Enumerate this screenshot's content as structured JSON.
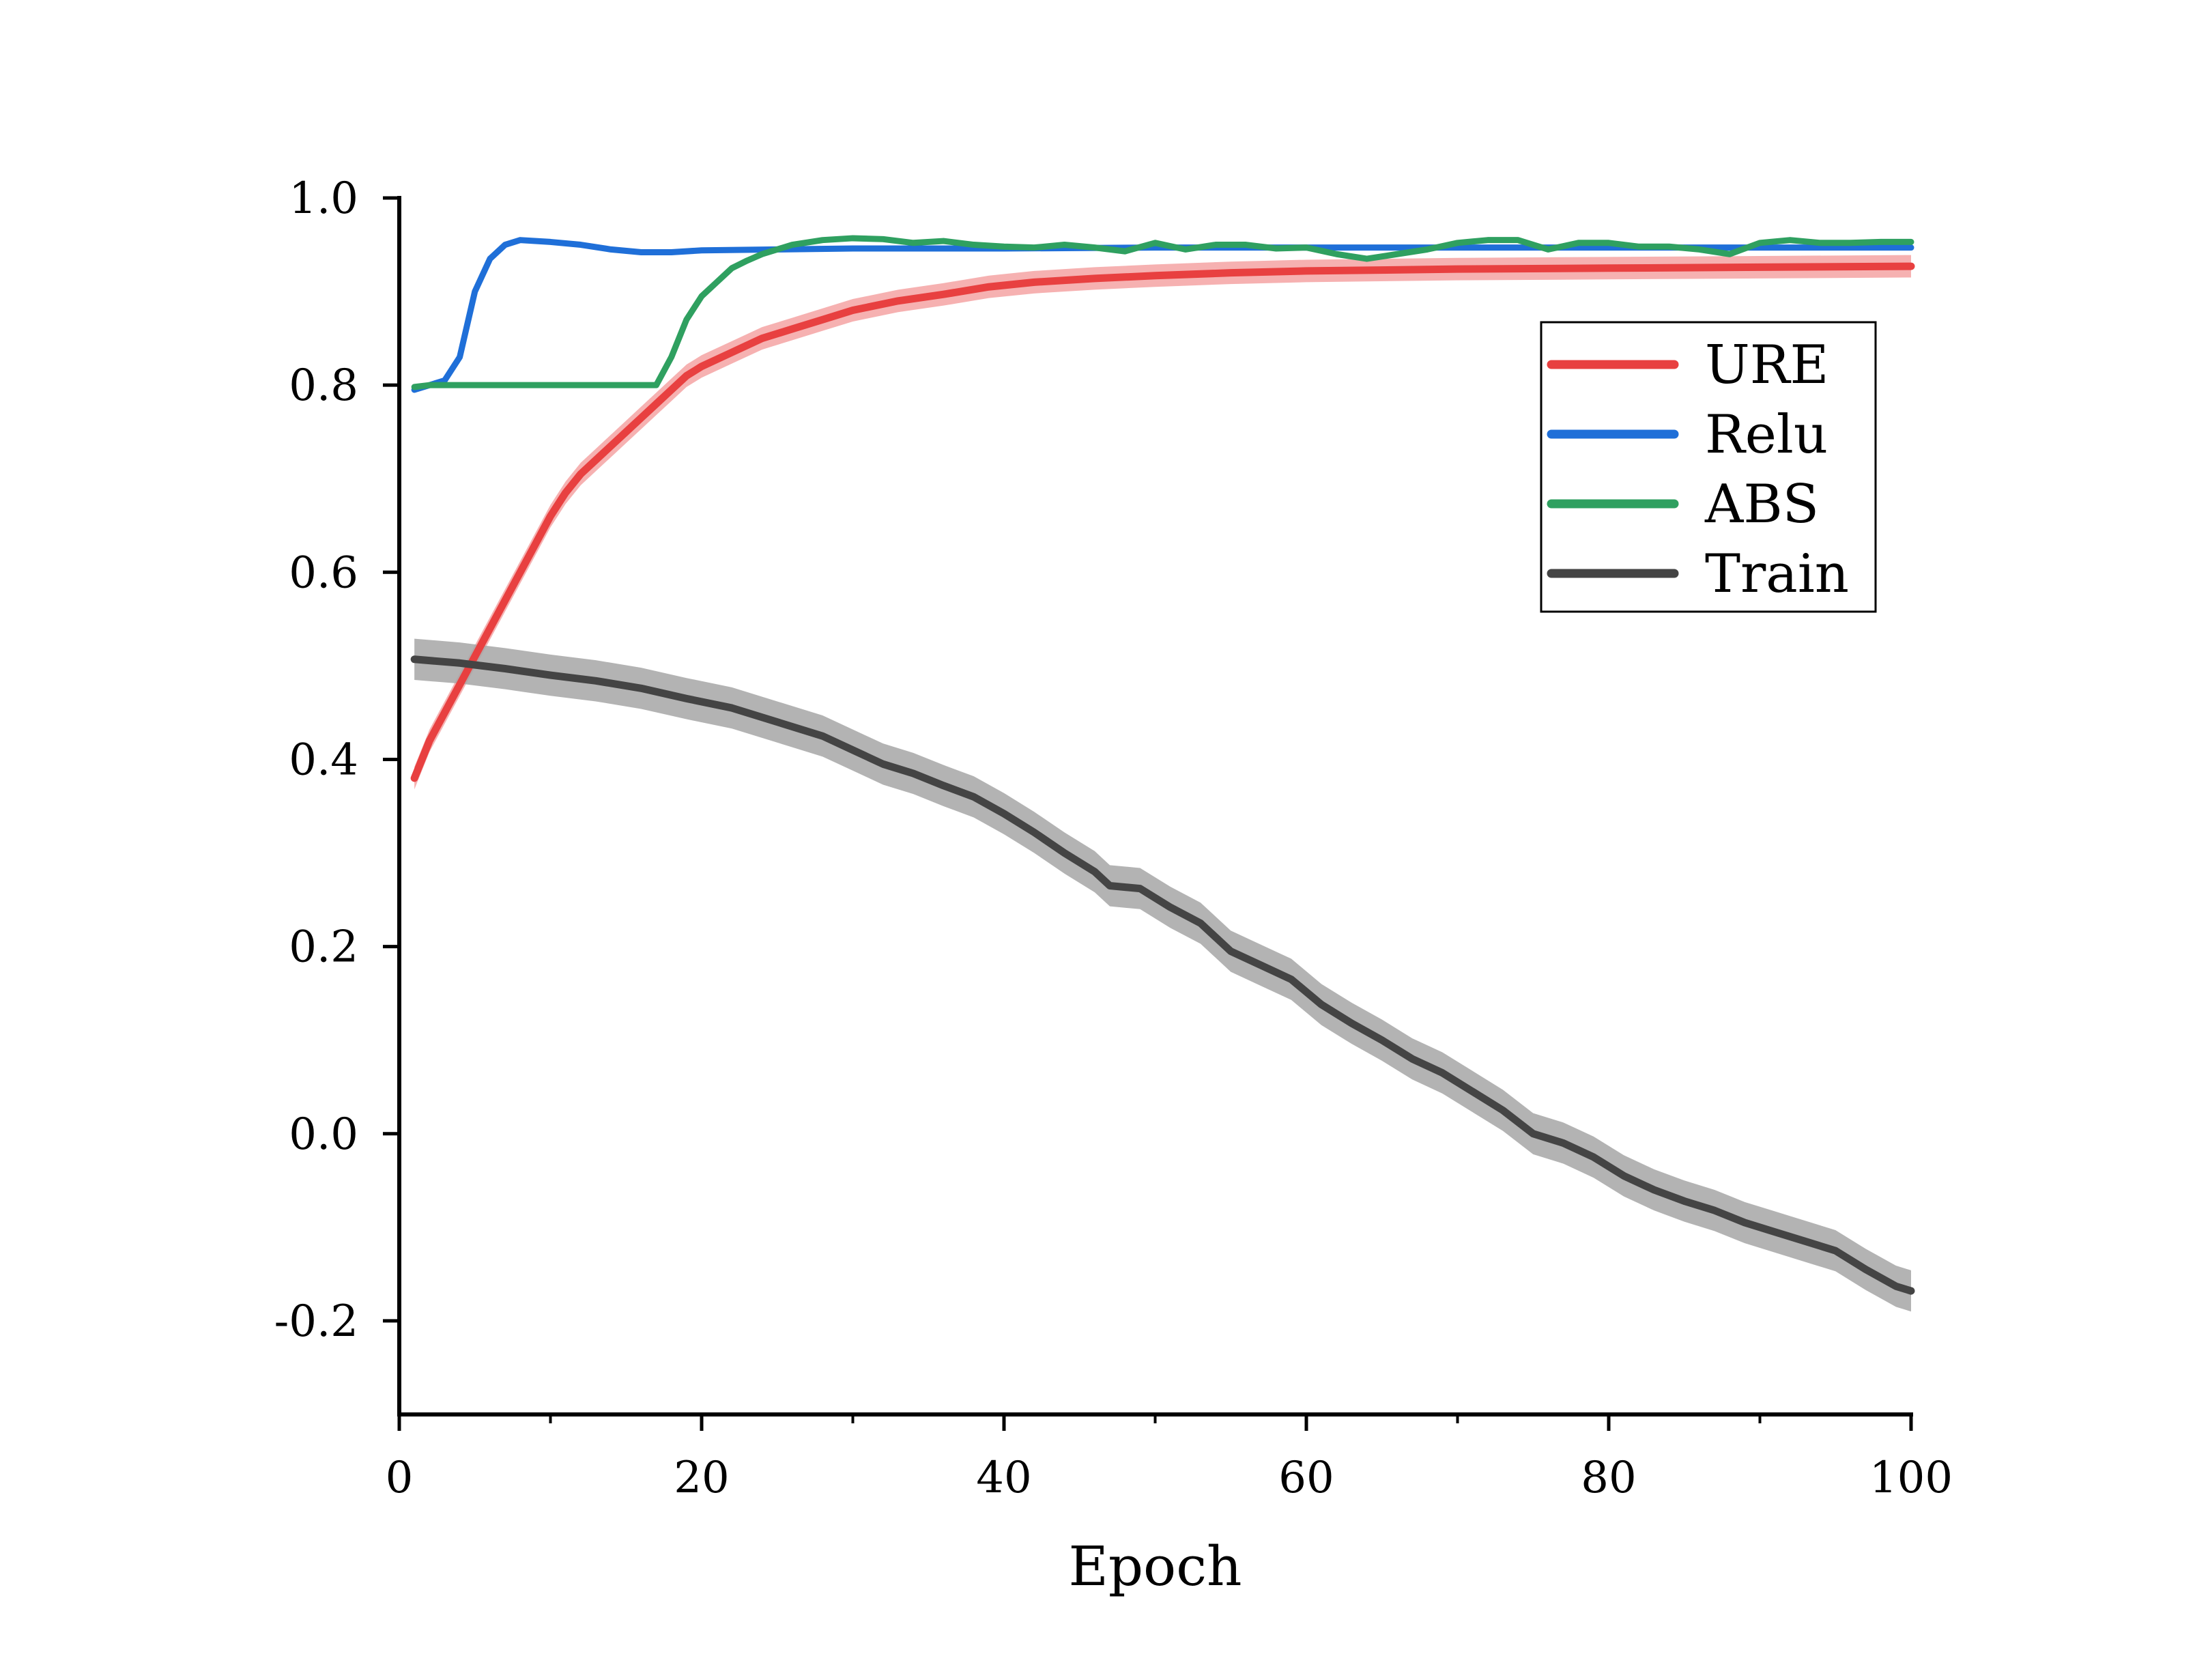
{
  "chart_data": {
    "type": "line",
    "title": "",
    "xlabel": "Epoch",
    "ylabel": "",
    "xlim": [
      0,
      100
    ],
    "ylim": [
      -0.3,
      1.0
    ],
    "x_ticks": [
      0,
      20,
      40,
      60,
      80,
      100
    ],
    "x_tick_labels": [
      "0",
      "20",
      "40",
      "60",
      "80",
      "100"
    ],
    "y_ticks": [
      -0.2,
      0.0,
      0.2,
      0.4,
      0.6,
      0.8,
      1.0
    ],
    "y_tick_labels": [
      "-0.2",
      "0.0",
      "0.2",
      "0.4",
      "0.6",
      "0.8",
      "1.0"
    ],
    "grid": false,
    "legend_position": "top-right",
    "series": [
      {
        "name": "URE",
        "color": "#e84040",
        "band_color": "#f4a3a3",
        "band_width": 0.012,
        "points": [
          [
            1,
            0.38
          ],
          [
            2,
            0.42
          ],
          [
            3,
            0.45
          ],
          [
            4,
            0.48
          ],
          [
            5,
            0.51
          ],
          [
            6,
            0.54
          ],
          [
            7,
            0.57
          ],
          [
            8,
            0.6
          ],
          [
            9,
            0.63
          ],
          [
            10,
            0.66
          ],
          [
            11,
            0.685
          ],
          [
            12,
            0.705
          ],
          [
            13,
            0.72
          ],
          [
            14,
            0.735
          ],
          [
            15,
            0.75
          ],
          [
            16,
            0.765
          ],
          [
            17,
            0.78
          ],
          [
            18,
            0.795
          ],
          [
            19,
            0.81
          ],
          [
            20,
            0.82
          ],
          [
            22,
            0.835
          ],
          [
            24,
            0.85
          ],
          [
            26,
            0.86
          ],
          [
            28,
            0.87
          ],
          [
            30,
            0.88
          ],
          [
            33,
            0.89
          ],
          [
            36,
            0.897
          ],
          [
            39,
            0.905
          ],
          [
            42,
            0.91
          ],
          [
            46,
            0.914
          ],
          [
            50,
            0.917
          ],
          [
            55,
            0.92
          ],
          [
            60,
            0.922
          ],
          [
            70,
            0.924
          ],
          [
            80,
            0.925
          ],
          [
            90,
            0.926
          ],
          [
            100,
            0.927
          ]
        ]
      },
      {
        "name": "Relu",
        "color": "#1f6fd8",
        "band_color": "",
        "band_width": 0,
        "points": [
          [
            1,
            0.795
          ],
          [
            2,
            0.8
          ],
          [
            3,
            0.805
          ],
          [
            4,
            0.83
          ],
          [
            5,
            0.9
          ],
          [
            6,
            0.935
          ],
          [
            7,
            0.95
          ],
          [
            8,
            0.955
          ],
          [
            10,
            0.953
          ],
          [
            12,
            0.95
          ],
          [
            14,
            0.945
          ],
          [
            16,
            0.942
          ],
          [
            18,
            0.942
          ],
          [
            20,
            0.944
          ],
          [
            25,
            0.945
          ],
          [
            30,
            0.946
          ],
          [
            40,
            0.946
          ],
          [
            50,
            0.947
          ],
          [
            60,
            0.947
          ],
          [
            70,
            0.947
          ],
          [
            80,
            0.947
          ],
          [
            90,
            0.947
          ],
          [
            100,
            0.947
          ]
        ]
      },
      {
        "name": "ABS",
        "color": "#2fa060",
        "band_color": "",
        "band_width": 0,
        "points": [
          [
            1,
            0.798
          ],
          [
            2,
            0.8
          ],
          [
            5,
            0.8
          ],
          [
            10,
            0.8
          ],
          [
            15,
            0.8
          ],
          [
            17,
            0.8
          ],
          [
            18,
            0.83
          ],
          [
            19,
            0.87
          ],
          [
            20,
            0.895
          ],
          [
            21,
            0.91
          ],
          [
            22,
            0.925
          ],
          [
            23,
            0.933
          ],
          [
            24,
            0.94
          ],
          [
            26,
            0.95
          ],
          [
            28,
            0.955
          ],
          [
            30,
            0.957
          ],
          [
            32,
            0.956
          ],
          [
            34,
            0.952
          ],
          [
            36,
            0.954
          ],
          [
            38,
            0.95
          ],
          [
            40,
            0.948
          ],
          [
            42,
            0.947
          ],
          [
            44,
            0.95
          ],
          [
            46,
            0.947
          ],
          [
            48,
            0.943
          ],
          [
            50,
            0.952
          ],
          [
            52,
            0.945
          ],
          [
            54,
            0.95
          ],
          [
            56,
            0.95
          ],
          [
            58,
            0.946
          ],
          [
            60,
            0.947
          ],
          [
            62,
            0.94
          ],
          [
            64,
            0.935
          ],
          [
            66,
            0.94
          ],
          [
            68,
            0.945
          ],
          [
            70,
            0.952
          ],
          [
            72,
            0.955
          ],
          [
            74,
            0.955
          ],
          [
            76,
            0.945
          ],
          [
            78,
            0.952
          ],
          [
            80,
            0.952
          ],
          [
            82,
            0.948
          ],
          [
            84,
            0.948
          ],
          [
            86,
            0.945
          ],
          [
            88,
            0.94
          ],
          [
            90,
            0.952
          ],
          [
            92,
            0.955
          ],
          [
            94,
            0.952
          ],
          [
            96,
            0.952
          ],
          [
            98,
            0.953
          ],
          [
            100,
            0.953
          ]
        ]
      },
      {
        "name": "Train",
        "color": "#444444",
        "band_color": "#a6a6a6",
        "band_width": 0.022,
        "points": [
          [
            1,
            0.507
          ],
          [
            4,
            0.503
          ],
          [
            7,
            0.497
          ],
          [
            10,
            0.49
          ],
          [
            13,
            0.484
          ],
          [
            16,
            0.476
          ],
          [
            19,
            0.465
          ],
          [
            22,
            0.455
          ],
          [
            25,
            0.44
          ],
          [
            28,
            0.425
          ],
          [
            30,
            0.41
          ],
          [
            32,
            0.395
          ],
          [
            34,
            0.385
          ],
          [
            36,
            0.372
          ],
          [
            38,
            0.36
          ],
          [
            40,
            0.342
          ],
          [
            42,
            0.322
          ],
          [
            44,
            0.3
          ],
          [
            46,
            0.28
          ],
          [
            47,
            0.265
          ],
          [
            49,
            0.262
          ],
          [
            51,
            0.242
          ],
          [
            53,
            0.225
          ],
          [
            55,
            0.195
          ],
          [
            57,
            0.18
          ],
          [
            59,
            0.165
          ],
          [
            61,
            0.138
          ],
          [
            63,
            0.118
          ],
          [
            65,
            0.1
          ],
          [
            67,
            0.08
          ],
          [
            69,
            0.065
          ],
          [
            71,
            0.045
          ],
          [
            73,
            0.025
          ],
          [
            75,
            0.0
          ],
          [
            77,
            -0.01
          ],
          [
            79,
            -0.025
          ],
          [
            81,
            -0.045
          ],
          [
            83,
            -0.06
          ],
          [
            85,
            -0.072
          ],
          [
            87,
            -0.082
          ],
          [
            89,
            -0.095
          ],
          [
            91,
            -0.105
          ],
          [
            93,
            -0.115
          ],
          [
            95,
            -0.125
          ],
          [
            97,
            -0.145
          ],
          [
            99,
            -0.163
          ],
          [
            100,
            -0.168
          ]
        ]
      }
    ]
  }
}
